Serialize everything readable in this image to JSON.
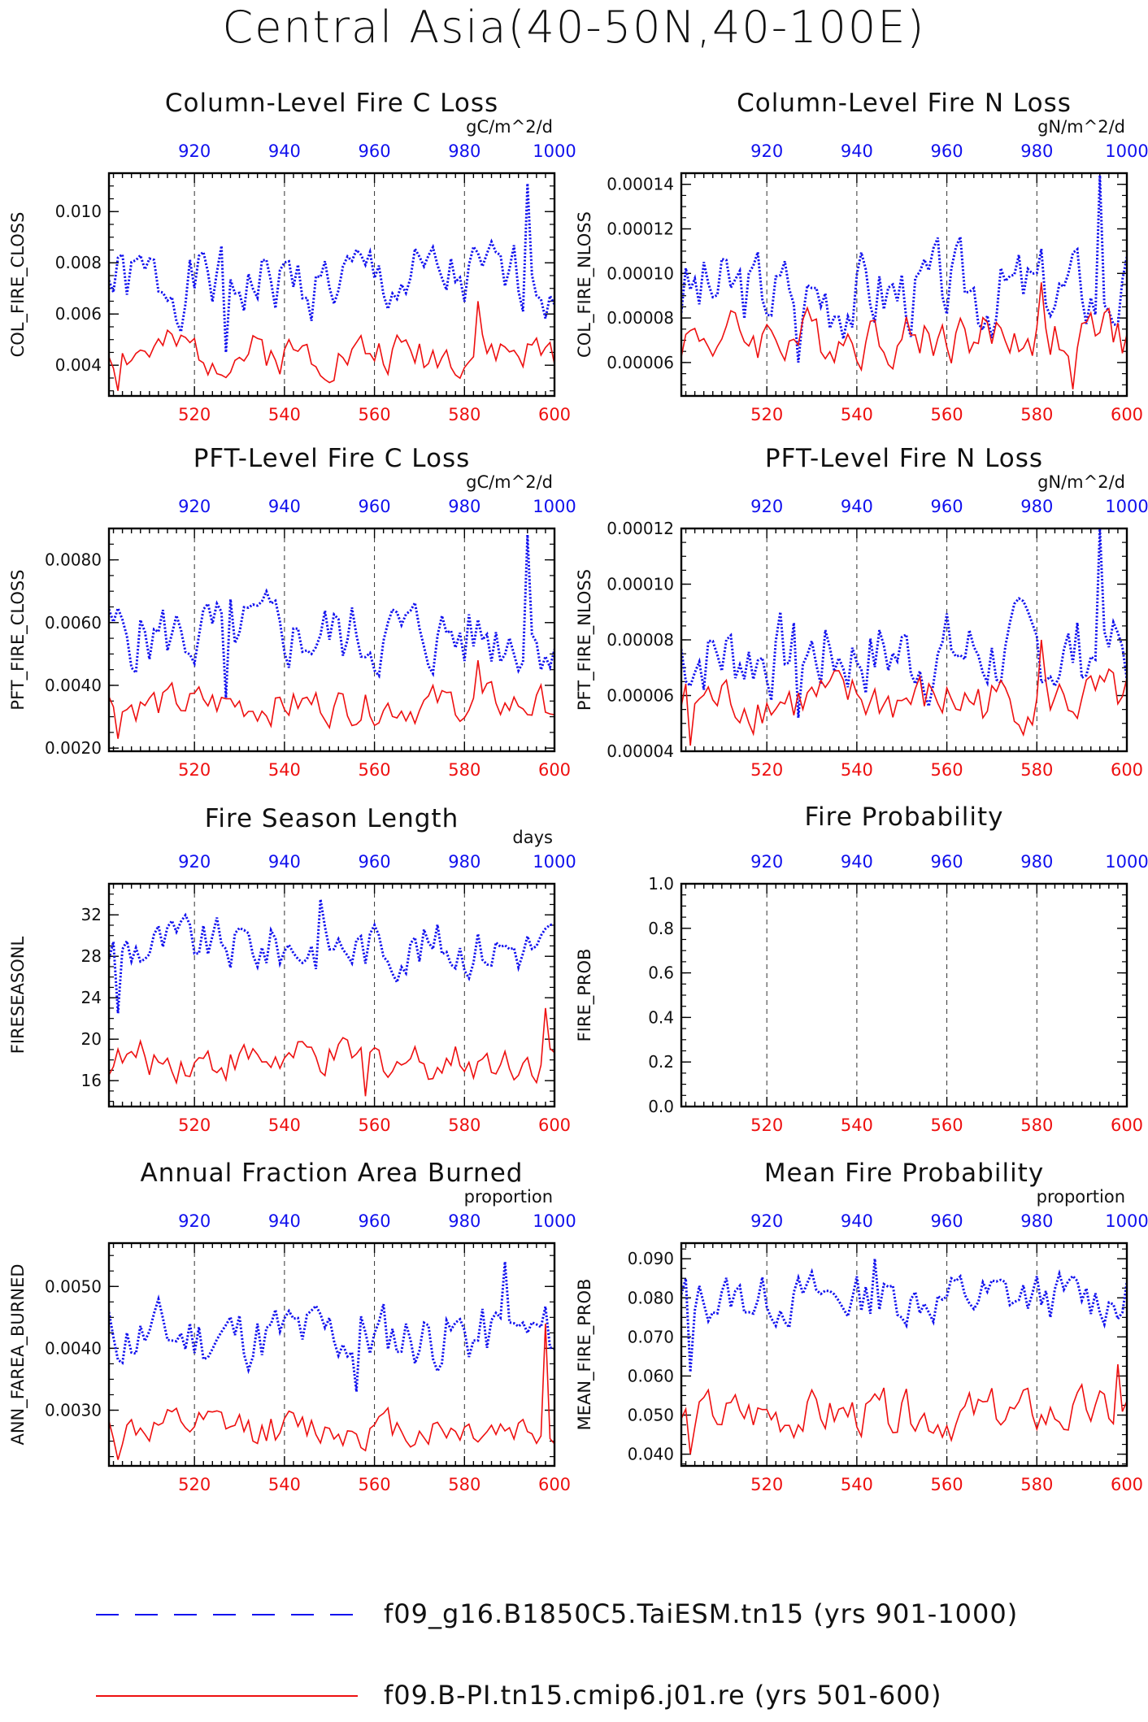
{
  "figure": {
    "title": "Central Asia(40-50N,40-100E)"
  },
  "legend": [
    {
      "label": "f09_g16.B1850C5.TaiESM.tn15 (yrs 901-1000)",
      "color": "#1010ee",
      "style": "dashed"
    },
    {
      "label": "f09.B-PI.tn15.cmip6.j01.re (yrs 501-600)",
      "color": "#ee1010",
      "style": "solid"
    }
  ],
  "chart_data": [
    {
      "type": "line",
      "title": "Column-Level Fire C Loss",
      "ylabel": "COL_FIRE_CLOSS",
      "units": "gC/m^2/d",
      "ylim": [
        0.0028,
        0.0115
      ],
      "yticks": [
        0.004,
        0.006,
        0.008,
        0.01
      ],
      "ytick_labels": [
        "0.004",
        "0.006",
        "0.008",
        "0.010"
      ],
      "x_bottom": {
        "range": [
          501,
          600
        ],
        "ticks": [
          520,
          540,
          560,
          580,
          600
        ],
        "color": "#ee1010"
      },
      "x_top": {
        "range": [
          901,
          1000
        ],
        "ticks": [
          920,
          940,
          960,
          980,
          1000
        ],
        "color": "#1010ee"
      },
      "grid_x": [
        520,
        540,
        560,
        580
      ],
      "series": [
        {
          "name": "f09_g16.B1850C5.TaiESM.tn15 (yrs 901-1000)",
          "axis": "top",
          "color": "#1010ee",
          "style": "dotted",
          "x_start": 901,
          "mean": 0.0072,
          "amp": 0.0012,
          "peak": 0.0111,
          "peak_x": 994,
          "trough": 0.0045,
          "trough_x": 927,
          "seed": 1
        },
        {
          "name": "f09.B-PI.tn15.cmip6.j01.re (yrs 501-600)",
          "axis": "bottom",
          "color": "#ee1010",
          "style": "solid",
          "x_start": 501,
          "mean": 0.0045,
          "amp": 0.0007,
          "peak": 0.0065,
          "peak_x": 583,
          "trough": 0.003,
          "trough_x": 503,
          "seed": 2
        }
      ]
    },
    {
      "type": "line",
      "title": "Column-Level Fire N Loss",
      "ylabel": "COL_FIRE_NLOSS",
      "units": "gN/m^2/d",
      "ylim": [
        4.5e-05,
        0.000145
      ],
      "yticks": [
        6e-05,
        8e-05,
        0.0001,
        0.00012,
        0.00014
      ],
      "ytick_labels": [
        "0.00006",
        "0.00008",
        "0.00010",
        "0.00012",
        "0.00014"
      ],
      "x_bottom": {
        "range": [
          501,
          600
        ],
        "ticks": [
          520,
          540,
          560,
          580,
          600
        ],
        "color": "#ee1010"
      },
      "x_top": {
        "range": [
          901,
          1000
        ],
        "ticks": [
          920,
          940,
          960,
          980,
          1000
        ],
        "color": "#1010ee"
      },
      "grid_x": [
        520,
        540,
        560,
        580
      ],
      "series": [
        {
          "name": "f09_g16.B1850C5.TaiESM.tn15 (yrs 901-1000)",
          "axis": "top",
          "color": "#1010ee",
          "style": "dotted",
          "x_start": 901,
          "mean": 9.2e-05,
          "amp": 1.6e-05,
          "peak": 0.000144,
          "peak_x": 994,
          "trough": 6e-05,
          "trough_x": 927,
          "seed": 3
        },
        {
          "name": "f09.B-PI.tn15.cmip6.j01.re (yrs 501-600)",
          "axis": "bottom",
          "color": "#ee1010",
          "style": "solid",
          "x_start": 501,
          "mean": 7.2e-05,
          "amp": 1e-05,
          "peak": 9.6e-05,
          "peak_x": 581,
          "trough": 4.8e-05,
          "trough_x": 588,
          "seed": 4
        }
      ]
    },
    {
      "type": "line",
      "title": "PFT-Level Fire C Loss",
      "ylabel": "PFT_FIRE_CLOSS",
      "units": "gC/m^2/d",
      "ylim": [
        0.0019,
        0.009
      ],
      "yticks": [
        0.002,
        0.004,
        0.006,
        0.008
      ],
      "ytick_labels": [
        "0.0020",
        "0.0040",
        "0.0060",
        "0.0080"
      ],
      "x_bottom": {
        "range": [
          501,
          600
        ],
        "ticks": [
          520,
          540,
          560,
          580,
          600
        ],
        "color": "#ee1010"
      },
      "x_top": {
        "range": [
          901,
          1000
        ],
        "ticks": [
          920,
          940,
          960,
          980,
          1000
        ],
        "color": "#1010ee"
      },
      "grid_x": [
        520,
        540,
        560,
        580
      ],
      "series": [
        {
          "name": "f09_g16.B1850C5.TaiESM.tn15 (yrs 901-1000)",
          "axis": "top",
          "color": "#1010ee",
          "style": "dotted",
          "x_start": 901,
          "mean": 0.0056,
          "amp": 0.001,
          "peak": 0.0088,
          "peak_x": 994,
          "trough": 0.0036,
          "trough_x": 927,
          "seed": 5
        },
        {
          "name": "f09.B-PI.tn15.cmip6.j01.re (yrs 501-600)",
          "axis": "bottom",
          "color": "#ee1010",
          "style": "solid",
          "x_start": 501,
          "mean": 0.0034,
          "amp": 0.0005,
          "peak": 0.0048,
          "peak_x": 583,
          "trough": 0.0023,
          "trough_x": 503,
          "seed": 6
        }
      ]
    },
    {
      "type": "line",
      "title": "PFT-Level Fire N Loss",
      "ylabel": "PFT_FIRE_NLOSS",
      "units": "gN/m^2/d",
      "ylim": [
        4e-05,
        0.00012
      ],
      "yticks": [
        4e-05,
        6e-05,
        8e-05,
        0.0001,
        0.00012
      ],
      "ytick_labels": [
        "0.00004",
        "0.00006",
        "0.00008",
        "0.00010",
        "0.00012"
      ],
      "x_bottom": {
        "range": [
          501,
          600
        ],
        "ticks": [
          520,
          540,
          560,
          580,
          600
        ],
        "color": "#ee1010"
      },
      "x_top": {
        "range": [
          901,
          1000
        ],
        "ticks": [
          920,
          940,
          960,
          980,
          1000
        ],
        "color": "#1010ee"
      },
      "grid_x": [
        520,
        540,
        560,
        580
      ],
      "series": [
        {
          "name": "f09_g16.B1850C5.TaiESM.tn15 (yrs 901-1000)",
          "axis": "top",
          "color": "#1010ee",
          "style": "dotted",
          "x_start": 901,
          "mean": 7.5e-05,
          "amp": 1.3e-05,
          "peak": 0.00012,
          "peak_x": 994,
          "trough": 5.2e-05,
          "trough_x": 927,
          "seed": 7
        },
        {
          "name": "f09.B-PI.tn15.cmip6.j01.re (yrs 501-600)",
          "axis": "bottom",
          "color": "#ee1010",
          "style": "solid",
          "x_start": 501,
          "mean": 5.8e-05,
          "amp": 8e-06,
          "peak": 8e-05,
          "peak_x": 581,
          "trough": 4.2e-05,
          "trough_x": 503,
          "seed": 8
        }
      ]
    },
    {
      "type": "line",
      "title": "Fire Season Length",
      "ylabel": "FIRESEASONL",
      "units": "days",
      "ylim": [
        13.5,
        35
      ],
      "yticks": [
        16,
        20,
        24,
        28,
        32
      ],
      "ytick_labels": [
        "16",
        "20",
        "24",
        "28",
        "32"
      ],
      "x_bottom": {
        "range": [
          501,
          600
        ],
        "ticks": [
          520,
          540,
          560,
          580,
          600
        ],
        "color": "#ee1010"
      },
      "x_top": {
        "range": [
          901,
          1000
        ],
        "ticks": [
          920,
          940,
          960,
          980,
          1000
        ],
        "color": "#1010ee"
      },
      "grid_x": [
        520,
        540,
        560,
        580
      ],
      "series": [
        {
          "name": "f09_g16.B1850C5.TaiESM.tn15 (yrs 901-1000)",
          "axis": "top",
          "color": "#1010ee",
          "style": "dotted",
          "x_start": 901,
          "mean": 29.0,
          "amp": 2.2,
          "peak": 33.5,
          "peak_x": 948,
          "trough": 22.5,
          "trough_x": 903,
          "seed": 9
        },
        {
          "name": "f09.B-PI.tn15.cmip6.j01.re (yrs 501-600)",
          "axis": "bottom",
          "color": "#ee1010",
          "style": "solid",
          "x_start": 501,
          "mean": 18.0,
          "amp": 1.6,
          "peak": 23.0,
          "peak_x": 598,
          "trough": 14.5,
          "trough_x": 558,
          "seed": 10
        }
      ]
    },
    {
      "type": "line",
      "title": "Fire Probability",
      "ylabel": "FIRE_PROB",
      "units": "",
      "ylim": [
        0.0,
        1.0
      ],
      "yticks": [
        0.0,
        0.2,
        0.4,
        0.6,
        0.8,
        1.0
      ],
      "ytick_labels": [
        "0.0",
        "0.2",
        "0.4",
        "0.6",
        "0.8",
        "1.0"
      ],
      "x_bottom": {
        "range": [
          501,
          600
        ],
        "ticks": [
          520,
          540,
          560,
          580,
          600
        ],
        "color": "#ee1010"
      },
      "x_top": {
        "range": [
          901,
          1000
        ],
        "ticks": [
          920,
          940,
          960,
          980,
          1000
        ],
        "color": "#1010ee"
      },
      "grid_x": [
        520,
        540,
        560,
        580
      ],
      "series": []
    },
    {
      "type": "line",
      "title": "Annual Fraction Area Burned",
      "ylabel": "ANN_FAREA_BURNED",
      "units": "proportion",
      "ylim": [
        0.0021,
        0.0057
      ],
      "yticks": [
        0.003,
        0.004,
        0.005
      ],
      "ytick_labels": [
        "0.0030",
        "0.0040",
        "0.0050"
      ],
      "x_bottom": {
        "range": [
          501,
          600
        ],
        "ticks": [
          520,
          540,
          560,
          580,
          600
        ],
        "color": "#ee1010"
      },
      "x_top": {
        "range": [
          901,
          1000
        ],
        "ticks": [
          920,
          940,
          960,
          980,
          1000
        ],
        "color": "#1010ee"
      },
      "grid_x": [
        520,
        540,
        560,
        580
      ],
      "series": [
        {
          "name": "f09_g16.B1850C5.TaiESM.tn15 (yrs 901-1000)",
          "axis": "top",
          "color": "#1010ee",
          "style": "dotted",
          "x_start": 901,
          "mean": 0.0042,
          "amp": 0.00045,
          "peak": 0.0054,
          "peak_x": 989,
          "trough": 0.0033,
          "trough_x": 956,
          "seed": 11
        },
        {
          "name": "f09.B-PI.tn15.cmip6.j01.re (yrs 501-600)",
          "axis": "bottom",
          "color": "#ee1010",
          "style": "solid",
          "x_start": 501,
          "mean": 0.0027,
          "amp": 0.00025,
          "peak": 0.0044,
          "peak_x": 598,
          "trough": 0.0022,
          "trough_x": 503,
          "seed": 12
        }
      ]
    },
    {
      "type": "line",
      "title": "Mean Fire Probability",
      "ylabel": "MEAN_FIRE_PROB",
      "units": "proportion",
      "ylim": [
        0.037,
        0.094
      ],
      "yticks": [
        0.04,
        0.05,
        0.06,
        0.07,
        0.08,
        0.09
      ],
      "ytick_labels": [
        "0.040",
        "0.050",
        "0.060",
        "0.070",
        "0.080",
        "0.090"
      ],
      "x_bottom": {
        "range": [
          501,
          600
        ],
        "ticks": [
          520,
          540,
          560,
          580,
          600
        ],
        "color": "#ee1010"
      },
      "x_top": {
        "range": [
          901,
          1000
        ],
        "ticks": [
          920,
          940,
          960,
          980,
          1000
        ],
        "color": "#1010ee"
      },
      "grid_x": [
        520,
        540,
        560,
        580
      ],
      "series": [
        {
          "name": "f09_g16.B1850C5.TaiESM.tn15 (yrs 901-1000)",
          "axis": "top",
          "color": "#1010ee",
          "style": "dotted",
          "x_start": 901,
          "mean": 0.08,
          "amp": 0.0055,
          "peak": 0.09,
          "peak_x": 944,
          "trough": 0.061,
          "trough_x": 903,
          "seed": 13
        },
        {
          "name": "f09.B-PI.tn15.cmip6.j01.re (yrs 501-600)",
          "axis": "bottom",
          "color": "#ee1010",
          "style": "solid",
          "x_start": 501,
          "mean": 0.05,
          "amp": 0.005,
          "peak": 0.063,
          "peak_x": 598,
          "trough": 0.04,
          "trough_x": 503,
          "seed": 14
        }
      ]
    }
  ]
}
